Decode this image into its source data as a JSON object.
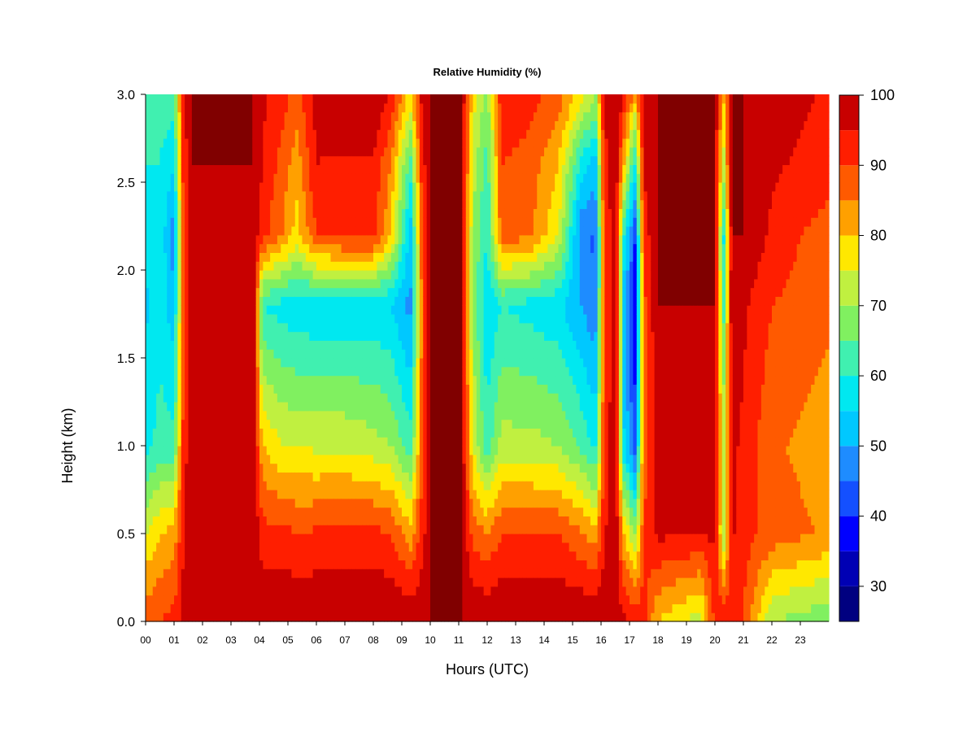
{
  "chart_data": {
    "type": "heatmap",
    "title": "Relative Humidity (%)",
    "xlabel": "Hours (UTC)",
    "ylabel": "Height (km)",
    "xlim": [
      0,
      24
    ],
    "ylim": [
      0,
      3.0
    ],
    "x_tick_labels": [
      "00",
      "01",
      "02",
      "03",
      "04",
      "05",
      "06",
      "07",
      "08",
      "09",
      "10",
      "11",
      "12",
      "13",
      "14",
      "15",
      "16",
      "17",
      "18",
      "19",
      "20",
      "21",
      "22",
      "23"
    ],
    "y_ticks": [
      0.0,
      0.5,
      1.0,
      1.5,
      2.0,
      2.5,
      3.0
    ],
    "y_tick_labels": [
      "0.0",
      "0.5",
      "1.0",
      "1.5",
      "2.0",
      "2.5",
      "3.0"
    ],
    "colorbar": {
      "range": [
        25,
        100
      ],
      "levels": [
        25,
        30,
        35,
        40,
        45,
        50,
        55,
        60,
        65,
        70,
        75,
        80,
        85,
        90,
        95,
        100
      ],
      "tick_values": [
        30,
        40,
        50,
        60,
        70,
        80,
        90,
        100
      ],
      "tick_labels": [
        "30",
        "40",
        "50",
        "60",
        "70",
        "80",
        "90",
        "100"
      ],
      "colors": [
        "#000080",
        "#0000b4",
        "#0000ff",
        "#1450ff",
        "#1e8cff",
        "#00c8ff",
        "#00e8f0",
        "#40f0b0",
        "#80f060",
        "#c0f040",
        "#ffe800",
        "#ffa000",
        "#ff5a00",
        "#ff1e00",
        "#c80000",
        "#800000"
      ]
    },
    "time_profiles": [
      {
        "x": 0.0,
        "y": [
          88,
          75,
          58,
          54,
          56,
          60,
          62
        ]
      },
      {
        "x": 0.5,
        "y": [
          90,
          80,
          62,
          58,
          60,
          60,
          62
        ]
      },
      {
        "x": 1.0,
        "y": [
          92,
          82,
          62,
          52,
          46,
          56,
          62
        ]
      },
      {
        "x": 1.3,
        "y": [
          96,
          94,
          90,
          88,
          88,
          90,
          92
        ]
      },
      {
        "x": 1.6,
        "y": [
          98,
          100,
          100,
          100,
          100,
          100,
          100
        ]
      },
      {
        "x": 3.0,
        "y": [
          98,
          100,
          98,
          97,
          99,
          100,
          100
        ]
      },
      {
        "x": 3.8,
        "y": [
          97,
          100,
          99,
          98,
          99,
          100,
          100
        ]
      },
      {
        "x": 4.1,
        "y": [
          100,
          92,
          80,
          60,
          92,
          95,
          96
        ]
      },
      {
        "x": 4.8,
        "y": [
          100,
          92,
          75,
          58,
          85,
          88,
          92
        ]
      },
      {
        "x": 5.3,
        "y": [
          100,
          90,
          75,
          56,
          78,
          82,
          88
        ]
      },
      {
        "x": 6.0,
        "y": [
          100,
          91,
          74,
          56,
          90,
          95,
          97
        ]
      },
      {
        "x": 7.0,
        "y": [
          100,
          92,
          74,
          56,
          92,
          94,
          100
        ]
      },
      {
        "x": 8.0,
        "y": [
          100,
          92,
          72,
          56,
          92,
          94,
          100
        ]
      },
      {
        "x": 8.6,
        "y": [
          100,
          90,
          70,
          55,
          80,
          85,
          95
        ]
      },
      {
        "x": 9.3,
        "y": [
          100,
          82,
          62,
          48,
          52,
          62,
          78
        ]
      },
      {
        "x": 9.7,
        "y": [
          100,
          92,
          88,
          85,
          88,
          92,
          96
        ]
      },
      {
        "x": 10.0,
        "y": [
          100,
          100,
          100,
          100,
          100,
          100,
          100
        ]
      },
      {
        "x": 11.1,
        "y": [
          100,
          100,
          100,
          100,
          100,
          100,
          100
        ]
      },
      {
        "x": 11.5,
        "y": [
          100,
          88,
          75,
          68,
          70,
          72,
          78
        ]
      },
      {
        "x": 12.0,
        "y": [
          100,
          85,
          62,
          55,
          60,
          62,
          68
        ]
      },
      {
        "x": 12.5,
        "y": [
          100,
          90,
          72,
          60,
          88,
          90,
          94
        ]
      },
      {
        "x": 13.5,
        "y": [
          100,
          90,
          72,
          58,
          86,
          88,
          92
        ]
      },
      {
        "x": 14.5,
        "y": [
          100,
          90,
          70,
          56,
          75,
          80,
          88
        ]
      },
      {
        "x": 15.3,
        "y": [
          100,
          86,
          64,
          50,
          46,
          58,
          78
        ]
      },
      {
        "x": 15.8,
        "y": [
          100,
          82,
          58,
          46,
          44,
          52,
          70
        ]
      },
      {
        "x": 16.1,
        "y": [
          98,
          94,
          90,
          88,
          88,
          92,
          96
        ]
      },
      {
        "x": 16.5,
        "y": [
          98,
          100,
          100,
          100,
          100,
          100,
          100
        ]
      },
      {
        "x": 16.8,
        "y": [
          96,
          80,
          56,
          52,
          60,
          80,
          95
        ]
      },
      {
        "x": 17.2,
        "y": [
          94,
          70,
          42,
          36,
          40,
          58,
          82
        ]
      },
      {
        "x": 17.5,
        "y": [
          92,
          90,
          88,
          88,
          92,
          96,
          98
        ]
      },
      {
        "x": 18.0,
        "y": [
          80,
          96,
          96,
          100,
          100,
          100,
          100
        ]
      },
      {
        "x": 19.5,
        "y": [
          72,
          95,
          95,
          100,
          100,
          100,
          100
        ]
      },
      {
        "x": 20.0,
        "y": [
          92,
          96,
          96,
          100,
          100,
          100,
          100
        ]
      },
      {
        "x": 20.3,
        "y": [
          95,
          70,
          74,
          62,
          58,
          72,
          80
        ]
      },
      {
        "x": 20.6,
        "y": [
          92,
          96,
          96,
          100,
          100,
          100,
          100
        ]
      },
      {
        "x": 21.0,
        "y": [
          90,
          92,
          94,
          96,
          100,
          100,
          100
        ]
      },
      {
        "x": 22.0,
        "y": [
          70,
          88,
          86,
          90,
          94,
          96,
          98
        ]
      },
      {
        "x": 23.0,
        "y": [
          68,
          86,
          84,
          88,
          90,
          94,
          96
        ]
      },
      {
        "x": 24.0,
        "y": [
          66,
          84,
          82,
          86,
          88,
          92,
          94
        ]
      }
    ],
    "profile_heights_km": [
      0.0,
      0.5,
      1.0,
      1.8,
      2.2,
      2.6,
      3.0
    ]
  }
}
